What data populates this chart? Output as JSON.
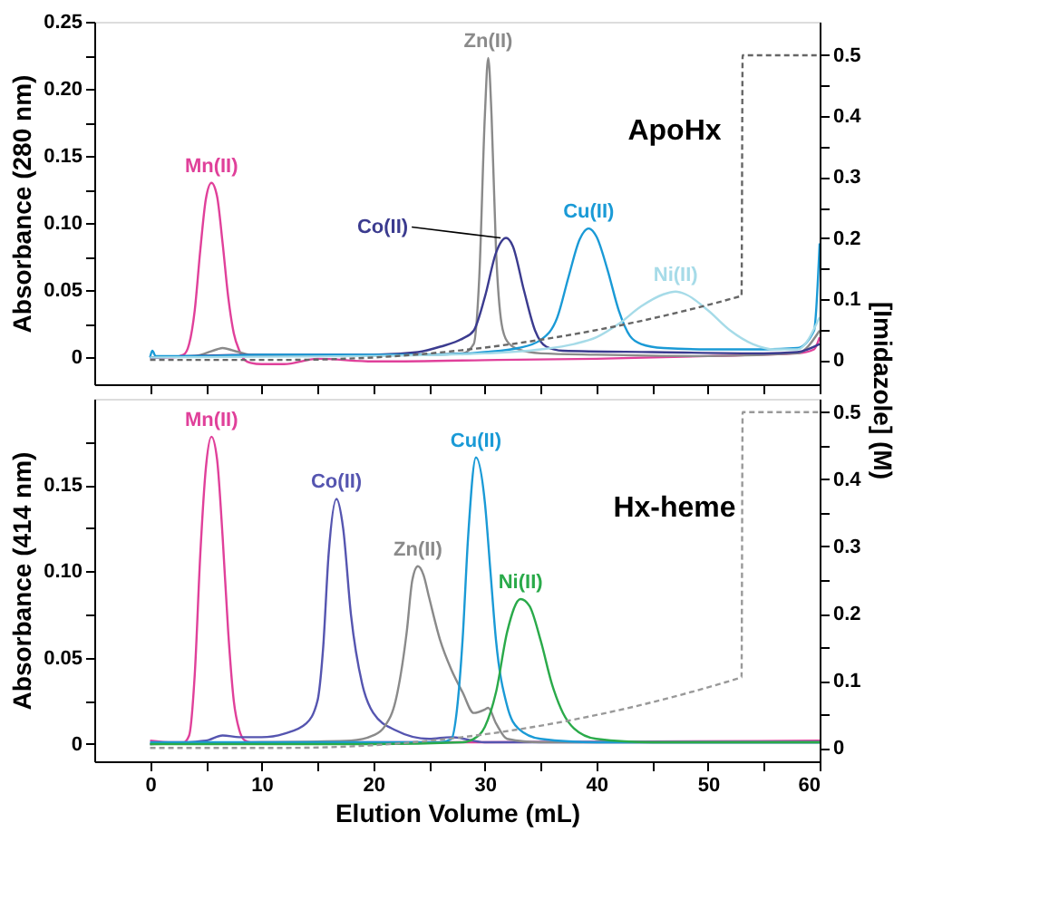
{
  "chart_data": [
    {
      "type": "line",
      "ylabel": "Absorbance (280 nm)",
      "y2label": "[Imidazole] (M)",
      "xlim": [
        -5,
        60
      ],
      "xticks": [
        {
          "value": 0,
          "label": null
        },
        {
          "value": 5,
          "label": null
        },
        {
          "value": 10,
          "label": null
        },
        {
          "value": 15,
          "label": null
        },
        {
          "value": 20,
          "label": null
        },
        {
          "value": 25,
          "label": null
        },
        {
          "value": 30,
          "label": null
        },
        {
          "value": 35,
          "label": null
        },
        {
          "value": 40,
          "label": null
        },
        {
          "value": 45,
          "label": null
        },
        {
          "value": 50,
          "label": null
        },
        {
          "value": 55,
          "label": null
        },
        {
          "value": 60,
          "label": null
        }
      ],
      "ylim": [
        -0.02,
        0.25
      ],
      "yticks": [
        0,
        {
          "value": 0.025,
          "label": null
        },
        0.05,
        {
          "value": 0.075,
          "label": null
        },
        {
          "value": 0.1,
          "label": "0.10"
        },
        {
          "value": 0.125,
          "label": null
        },
        0.15,
        {
          "value": 0.175,
          "label": null
        },
        {
          "value": 0.2,
          "label": "0.20"
        },
        {
          "value": 0.225,
          "label": null
        },
        0.25
      ],
      "y2lim": [
        -0.04,
        0.555
      ],
      "y2ticks": [
        0,
        {
          "value": 0.05,
          "label": null
        },
        0.1,
        {
          "value": 0.15,
          "label": null
        },
        0.2,
        {
          "value": 0.25,
          "label": null
        },
        0.3,
        {
          "value": 0.35,
          "label": null
        },
        0.4,
        {
          "value": 0.45,
          "label": null
        },
        0.5
      ],
      "tick_labels": "y",
      "series": [
        {
          "color": "#e0409a",
          "x": [
            0,
            2,
            3,
            3.5,
            4,
            4.5,
            5,
            5.5,
            6,
            6.5,
            7,
            7.5,
            8,
            8.5,
            9,
            10,
            12,
            15,
            20,
            30,
            40,
            50,
            58,
            59.5,
            60
          ],
          "values": [
            0,
            0,
            0.002,
            0.01,
            0.035,
            0.08,
            0.118,
            0.13,
            0.12,
            0.085,
            0.045,
            0.018,
            0.005,
            -0.002,
            -0.004,
            -0.005,
            -0.005,
            -0.001,
            -0.003,
            -0.002,
            -0.001,
            0.001,
            0.003,
            0.006,
            0.015
          ]
        },
        {
          "color": "#8a8a8a",
          "x": [
            0,
            4,
            6,
            6.5,
            7.5,
            9,
            15,
            25,
            28,
            29,
            29.5,
            30,
            30.3,
            30.6,
            31,
            31.5,
            32,
            33,
            35,
            40,
            50,
            58,
            60
          ],
          "values": [
            0,
            0.001,
            0.006,
            0.007,
            0.005,
            0.002,
            0.001,
            0.002,
            0.003,
            0.01,
            0.06,
            0.18,
            0.223,
            0.18,
            0.08,
            0.025,
            0.012,
            0.006,
            0.003,
            0.002,
            0.001,
            0.003,
            0.02
          ]
        },
        {
          "color": "#3b3b8f",
          "x": [
            0,
            10,
            20,
            24,
            26,
            28,
            29,
            30,
            31,
            31.9,
            32.5,
            33.5,
            34.5,
            35.5,
            37,
            45,
            55,
            58,
            60
          ],
          "values": [
            0,
            0.002,
            0.002,
            0.004,
            0.008,
            0.014,
            0.02,
            0.045,
            0.078,
            0.089,
            0.083,
            0.05,
            0.02,
            0.008,
            0.005,
            0.004,
            0.003,
            0.004,
            0.01
          ]
        },
        {
          "color": "#1a9ad6",
          "x": [
            0,
            0.2,
            0.5,
            5,
            10,
            20,
            25,
            30,
            33,
            35,
            36.5,
            37.5,
            38.5,
            39.3,
            40,
            41,
            42,
            43,
            44,
            46,
            50,
            55,
            58,
            59.5,
            60
          ],
          "values": [
            0,
            0.005,
            0.001,
            0.001,
            0.002,
            0.002,
            0.002,
            0.004,
            0.007,
            0.013,
            0.03,
            0.06,
            0.088,
            0.096,
            0.09,
            0.065,
            0.035,
            0.016,
            0.01,
            0.007,
            0.006,
            0.006,
            0.007,
            0.02,
            0.085
          ]
        },
        {
          "color": "#a6dbe8",
          "x": [
            0,
            20,
            30,
            35,
            38,
            40,
            42,
            44,
            46,
            47.1,
            48,
            50,
            52,
            54,
            56,
            58,
            60
          ],
          "values": [
            0,
            0.001,
            0.003,
            0.006,
            0.01,
            0.015,
            0.025,
            0.038,
            0.047,
            0.049,
            0.047,
            0.035,
            0.02,
            0.01,
            0.006,
            0.006,
            0.03
          ]
        },
        {
          "color": "#666666",
          "axis": "y2",
          "line_style": "dashed",
          "x": [
            0,
            12,
            53,
            53.1,
            60
          ],
          "values": [
            0,
            0,
            0.105,
            0.5,
            0.5
          ]
        }
      ],
      "annotations": [
        {
          "text": "Mn(II)",
          "x": 5.5,
          "y": 0.13
        },
        {
          "text": "Zn(II)",
          "x": 30.3,
          "y": 0.223
        },
        {
          "text": "Co(II)",
          "x": 31.9,
          "y": 0.089
        },
        {
          "text": "Cu(II)",
          "x": 39.3,
          "y": 0.096
        },
        {
          "text": "Ni(II)",
          "x": 47.1,
          "y": 0.049
        },
        "ApoHx"
      ]
    },
    {
      "type": "line",
      "ylabel": "Absorbance (414 nm)",
      "xlabel": "Elution Volume (mL)",
      "xlim": [
        -5,
        60
      ],
      "xticks": [
        0,
        {
          "value": 5,
          "label": null
        },
        10,
        {
          "value": 15,
          "label": null
        },
        20,
        {
          "value": 25,
          "label": null
        },
        30,
        {
          "value": 35,
          "label": null
        },
        40,
        {
          "value": 45,
          "label": null
        },
        50,
        {
          "value": 55,
          "label": null
        },
        60
      ],
      "ylim": [
        -0.01,
        0.2
      ],
      "yticks": [
        0,
        {
          "value": 0.025,
          "label": null
        },
        0.05,
        {
          "value": 0.075,
          "label": null
        },
        {
          "value": 0.1,
          "label": "0.10"
        },
        {
          "value": 0.125,
          "label": null
        },
        0.15,
        {
          "value": 0.175,
          "label": null
        }
      ],
      "y2lim": [
        -0.02,
        0.52
      ],
      "y2ticks": [
        0,
        {
          "value": 0.05,
          "label": null
        },
        0.1,
        {
          "value": 0.15,
          "label": null
        },
        0.2,
        {
          "value": 0.25,
          "label": null
        },
        0.3,
        {
          "value": 0.35,
          "label": null
        },
        0.4,
        {
          "value": 0.45,
          "label": null
        },
        0.5
      ],
      "series": [
        {
          "color": "#e0409a",
          "x": [
            0,
            2,
            3,
            3.5,
            4,
            4.5,
            5,
            5.5,
            6,
            6.5,
            7,
            7.5,
            8,
            8.5,
            9,
            15,
            30,
            60
          ],
          "values": [
            0.002,
            0.001,
            0.001,
            0.005,
            0.04,
            0.11,
            0.16,
            0.178,
            0.165,
            0.12,
            0.065,
            0.025,
            0.008,
            0.002,
            0.001,
            0.001,
            0.001,
            0.002
          ]
        },
        {
          "color": "#5555b0",
          "x": [
            0,
            5,
            6.5,
            8,
            10,
            12,
            14,
            15,
            15.5,
            16,
            16.7,
            17.3,
            18,
            19,
            20,
            22,
            25,
            27,
            30,
            40,
            60
          ],
          "values": [
            0,
            0.002,
            0.005,
            0.004,
            0.004,
            0.006,
            0.012,
            0.025,
            0.055,
            0.11,
            0.142,
            0.125,
            0.075,
            0.035,
            0.018,
            0.008,
            0.003,
            0.004,
            0.001,
            0.001,
            0.001
          ]
        },
        {
          "color": "#8a8a8a",
          "x": [
            0,
            10,
            18,
            20,
            21,
            22,
            23,
            23.5,
            24,
            24.5,
            25,
            26,
            27,
            28,
            29,
            30,
            30.3,
            31,
            32,
            35,
            60
          ],
          "values": [
            0,
            0.001,
            0.002,
            0.005,
            0.01,
            0.025,
            0.065,
            0.095,
            0.103,
            0.098,
            0.085,
            0.06,
            0.043,
            0.03,
            0.018,
            0.02,
            0.021,
            0.012,
            0.003,
            0.001,
            0.001
          ]
        },
        {
          "color": "#1a9ad6",
          "x": [
            0,
            10,
            26,
            27,
            27.5,
            28,
            28.5,
            29.2,
            30,
            30.5,
            31,
            32,
            33,
            35,
            40,
            60
          ],
          "values": [
            0.001,
            0.001,
            0.001,
            0.003,
            0.02,
            0.06,
            0.12,
            0.166,
            0.14,
            0.1,
            0.06,
            0.022,
            0.009,
            0.003,
            0.001,
            0.001
          ]
        },
        {
          "color": "#2aaa4a",
          "x": [
            0,
            20,
            28,
            29,
            30,
            31,
            32,
            33.2,
            34,
            35,
            36,
            37,
            38,
            40,
            45,
            60
          ],
          "values": [
            0,
            0,
            0.001,
            0.003,
            0.01,
            0.03,
            0.065,
            0.084,
            0.08,
            0.06,
            0.035,
            0.018,
            0.009,
            0.003,
            0.001,
            0.001
          ]
        },
        {
          "color": "#999999",
          "axis": "y2",
          "line_style": "dashed",
          "x": [
            0,
            12,
            53,
            53.1,
            60
          ],
          "values": [
            0,
            0,
            0.105,
            0.5,
            0.5
          ]
        }
      ],
      "annotations": [
        {
          "text": "Mn(II)",
          "x": 5.5,
          "y": 0.178
        },
        {
          "text": "Co(II)",
          "x": 16.7,
          "y": 0.142
        },
        {
          "text": "Zn(II)",
          "x": 24,
          "y": 0.103
        },
        {
          "text": "Cu(II)",
          "x": 29.2,
          "y": 0.166
        },
        {
          "text": "Ni(II)",
          "x": 33.2,
          "y": 0.084
        },
        "Hx-heme"
      ]
    }
  ]
}
